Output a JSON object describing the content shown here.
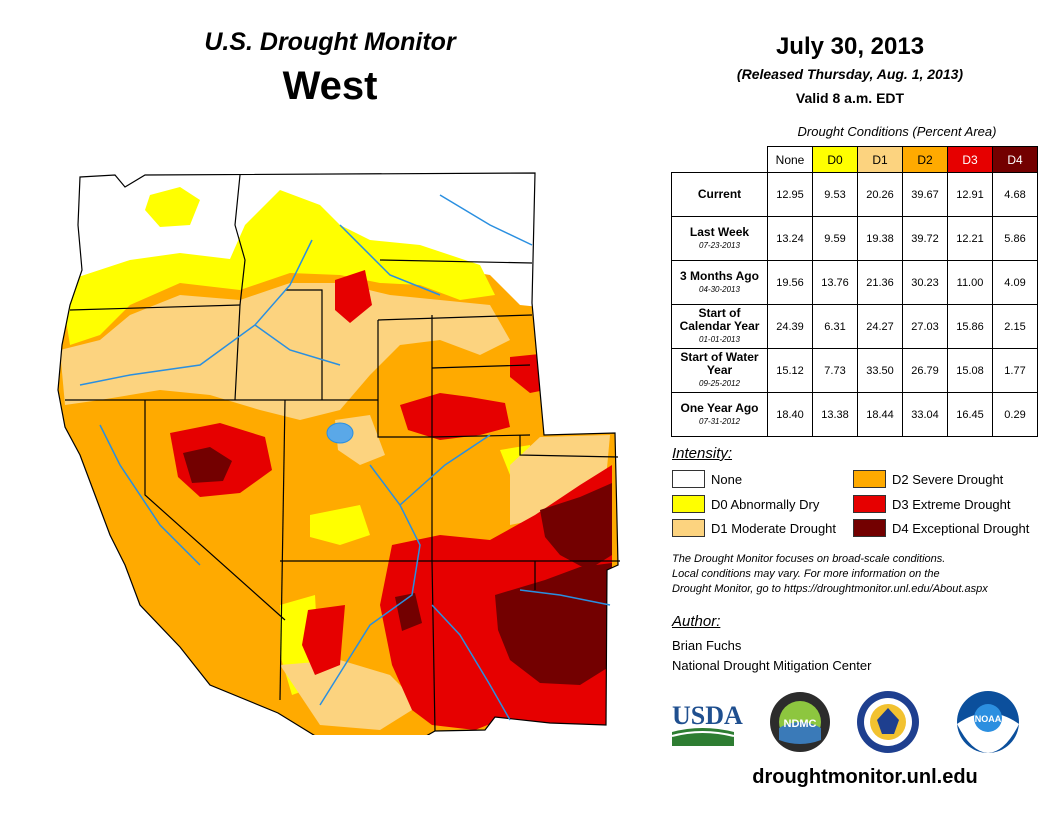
{
  "header": {
    "title": "U.S. Drought Monitor",
    "region": "West",
    "date": "July 30, 2013",
    "released": "(Released Thursday, Aug. 1, 2013)",
    "valid": "Valid 8 a.m. EDT"
  },
  "table": {
    "caption": "Drought Conditions (Percent Area)",
    "columns": [
      {
        "label": "None",
        "color": "#ffffff",
        "text": "#000000"
      },
      {
        "label": "D0",
        "color": "#ffff00",
        "text": "#000000"
      },
      {
        "label": "D1",
        "color": "#fcd37f",
        "text": "#000000"
      },
      {
        "label": "D2",
        "color": "#ffaa00",
        "text": "#000000"
      },
      {
        "label": "D3",
        "color": "#e60000",
        "text": "#ffffff"
      },
      {
        "label": "D4",
        "color": "#730000",
        "text": "#ffffff"
      }
    ],
    "rows": [
      {
        "label": "Current",
        "sub": "",
        "values": [
          "12.95",
          "9.53",
          "20.26",
          "39.67",
          "12.91",
          "4.68"
        ]
      },
      {
        "label": "Last Week",
        "sub": "07-23-2013",
        "values": [
          "13.24",
          "9.59",
          "19.38",
          "39.72",
          "12.21",
          "5.86"
        ]
      },
      {
        "label": "3 Months Ago",
        "sub": "04-30-2013",
        "values": [
          "19.56",
          "13.76",
          "21.36",
          "30.23",
          "11.00",
          "4.09"
        ]
      },
      {
        "label": "Start of Calendar Year",
        "sub": "01-01-2013",
        "values": [
          "24.39",
          "6.31",
          "24.27",
          "27.03",
          "15.86",
          "2.15"
        ]
      },
      {
        "label": "Start of Water Year",
        "sub": "09-25-2012",
        "values": [
          "15.12",
          "7.73",
          "33.50",
          "26.79",
          "15.08",
          "1.77"
        ]
      },
      {
        "label": "One Year Ago",
        "sub": "07-31-2012",
        "values": [
          "18.40",
          "13.38",
          "18.44",
          "33.04",
          "16.45",
          "0.29"
        ]
      }
    ]
  },
  "legend": {
    "heading": "Intensity:",
    "items": [
      {
        "label": "None",
        "color": "#ffffff"
      },
      {
        "label": "D0 Abnormally Dry",
        "color": "#ffff00"
      },
      {
        "label": "D1 Moderate Drought",
        "color": "#fcd37f"
      },
      {
        "label": "D2 Severe Drought",
        "color": "#ffaa00"
      },
      {
        "label": "D3 Extreme Drought",
        "color": "#e60000"
      },
      {
        "label": "D4 Exceptional Drought",
        "color": "#730000"
      }
    ]
  },
  "note": {
    "line1": "The Drought Monitor focuses on broad-scale conditions.",
    "line2": "Local conditions may vary. For more information on the",
    "line3": "Drought Monitor, go to https://droughtmonitor.unl.edu/About.aspx"
  },
  "author": {
    "heading": "Author:",
    "name": "Brian Fuchs",
    "org": "National Drought Mitigation Center"
  },
  "logos": {
    "usda": "USDA",
    "ndmc": "NDMC",
    "noaa": "NOAA"
  },
  "website": "droughtmonitor.unl.edu"
}
